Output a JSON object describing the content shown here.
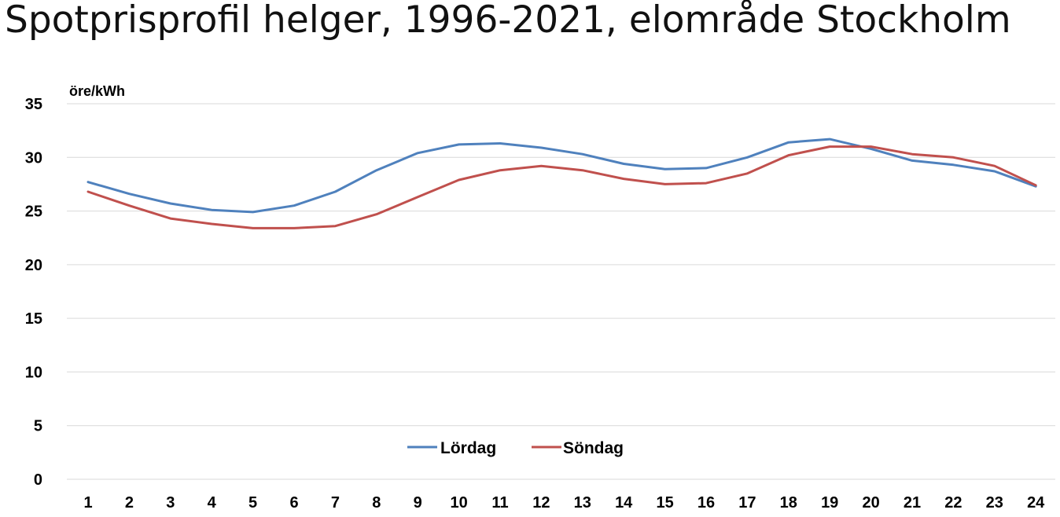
{
  "chart_data": {
    "type": "line",
    "title": "Spotprisprofil helger, 1996-2021, elområde Stockholm",
    "ylabel": "öre/kWh",
    "xlabel": "",
    "x": [
      "1",
      "2",
      "3",
      "4",
      "5",
      "6",
      "7",
      "8",
      "9",
      "10",
      "11",
      "12",
      "13",
      "14",
      "15",
      "16",
      "17",
      "18",
      "19",
      "20",
      "21",
      "22",
      "23",
      "24"
    ],
    "ylim": [
      0,
      35
    ],
    "yticks": [
      "0",
      "5",
      "10",
      "15",
      "20",
      "25",
      "30",
      "35"
    ],
    "grid": true,
    "legend_position": "bottom-center",
    "series": [
      {
        "name": "Lördag",
        "color": "#4f81bd",
        "values": [
          27.7,
          26.6,
          25.7,
          25.1,
          24.9,
          25.5,
          26.8,
          28.8,
          30.4,
          31.2,
          31.3,
          30.9,
          30.3,
          29.4,
          28.9,
          29.0,
          30.0,
          31.4,
          31.7,
          30.8,
          29.7,
          29.3,
          28.7,
          27.3
        ]
      },
      {
        "name": "Söndag",
        "color": "#c0504d",
        "values": [
          26.8,
          25.5,
          24.3,
          23.8,
          23.4,
          23.4,
          23.6,
          24.7,
          26.3,
          27.9,
          28.8,
          29.2,
          28.8,
          28.0,
          27.5,
          27.6,
          28.5,
          30.2,
          31.0,
          31.0,
          30.3,
          30.0,
          29.2,
          27.4
        ]
      }
    ]
  }
}
